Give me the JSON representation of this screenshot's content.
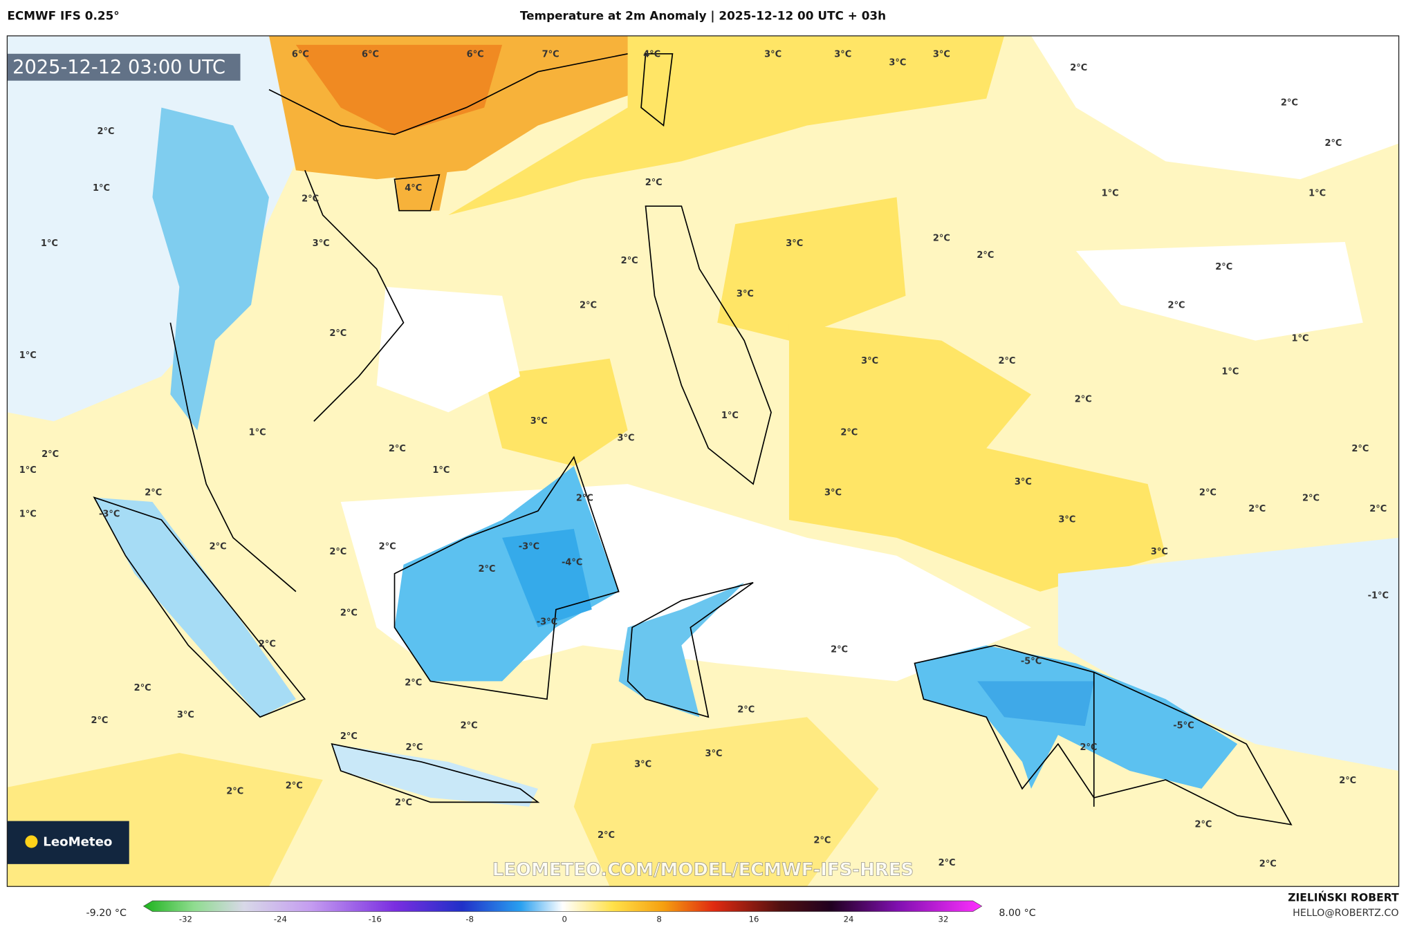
{
  "header": {
    "model": "ECMWF IFS 0.25°",
    "title": "Temperature at 2m Anomaly | 2025-12-12 00 UTC + 03h"
  },
  "map": {
    "timestamp": "2025-12-12 03:00 UTC",
    "watermark": "LEOMETEO.COM/MODEL/ECMWF-IFS-HRES",
    "logo": "LeoMeteo",
    "labels": [
      "6°C",
      "6°C",
      "6°C",
      "7°C",
      "4°C",
      "3°C",
      "3°C",
      "3°C",
      "3°C",
      "2°C",
      "2°C",
      "2°C",
      "2°C",
      "1°C",
      "4°C",
      "2°C",
      "1°C",
      "1°C",
      "2°C",
      "3°C",
      "3°C",
      "2°C",
      "2°C",
      "2°C",
      "1°C",
      "2°C",
      "3°C",
      "2°C",
      "2°C",
      "2°C",
      "1°C",
      "1°C",
      "3°C",
      "2°C",
      "1°C",
      "2°C",
      "3°C",
      "1°C",
      "3°C",
      "2°C",
      "1°C",
      "2°C",
      "1°C",
      "2°C",
      "1°C",
      "2°C",
      "3°C",
      "3°C",
      "2°C",
      "2°C",
      "2°C",
      "2°C",
      "2°C",
      "2°C",
      "1°C",
      "3°C",
      "3°C",
      "2°C",
      "2°C",
      "2°C",
      "2°C",
      "2°C",
      "2°C",
      "2°C",
      "2°C",
      "3°C",
      "2°C",
      "2°C",
      "2°C",
      "2°C",
      "2°C",
      "2°C",
      "3°C",
      "3°C",
      "2°C",
      "2°C",
      "2°C",
      "2°C",
      "2°C",
      "2°C",
      "2°C",
      "2°C",
      "2°C",
      "2°C",
      "-1°C",
      "-5°C",
      "-5°C",
      "-4°C",
      "-3°C",
      "-3°C",
      "-3°C"
    ]
  },
  "colorbar": {
    "min_label": "-9.20 °C",
    "max_label": "8.00 °C",
    "ticks": [
      -32,
      -24,
      -16,
      -8,
      0,
      8,
      16,
      24,
      32
    ]
  },
  "footer": {
    "author": "ZIELIŃSKI ROBERT",
    "email": "HELLO@ROBERTZ.CO"
  }
}
